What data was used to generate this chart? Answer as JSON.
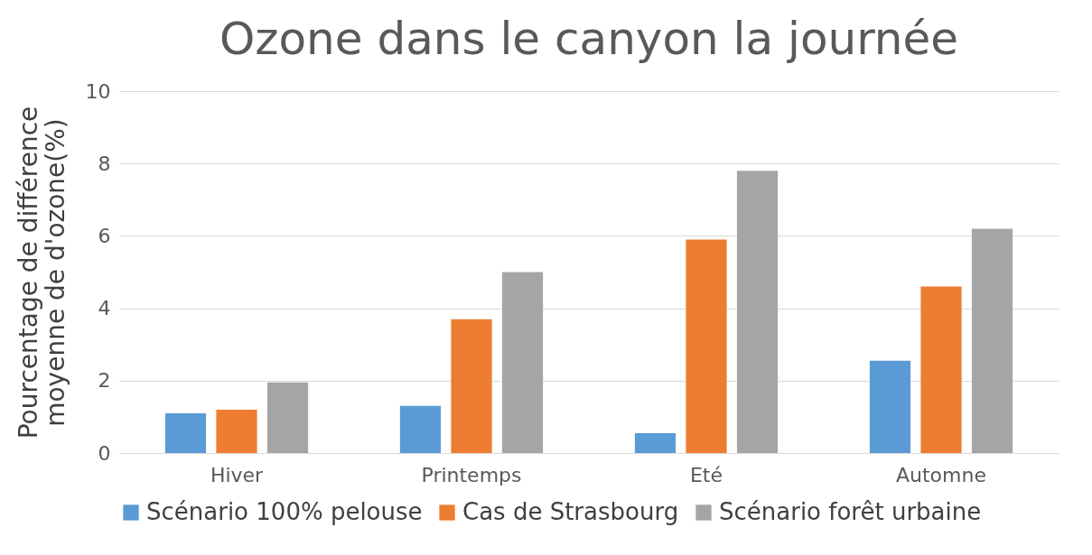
{
  "chart_data": {
    "type": "bar",
    "title": "Ozone dans le canyon la journée",
    "ylabel": "Pourcentage de différence moyenne de d'ozone(%)",
    "categories": [
      "Hiver",
      "Printemps",
      "Eté",
      "Automne"
    ],
    "series": [
      {
        "name": "Scénario 100% pelouse",
        "color": "#5b9bd5",
        "values": [
          1.1,
          1.3,
          0.55,
          2.55
        ]
      },
      {
        "name": "Cas de Strasbourg",
        "color": "#ed7d31",
        "values": [
          1.2,
          3.7,
          5.9,
          4.6
        ]
      },
      {
        "name": "Scénario forêt urbaine",
        "color": "#a5a5a5",
        "values": [
          1.95,
          5.0,
          7.8,
          6.2
        ]
      }
    ],
    "ylim": [
      0,
      10
    ],
    "yticks": [
      0,
      2,
      4,
      6,
      8,
      10
    ],
    "grid": "y",
    "legend": "bottom"
  }
}
